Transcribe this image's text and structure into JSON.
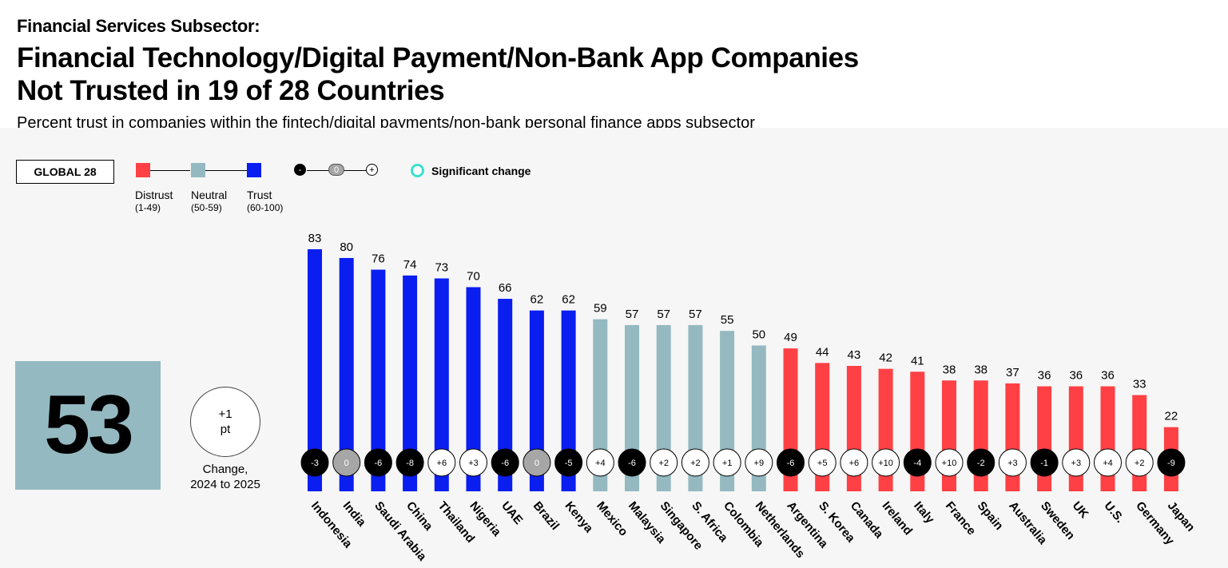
{
  "header": {
    "kicker": "Financial Services Subsector:",
    "title_line1": "Financial Technology/Digital Payment/Non-Bank App Companies",
    "title_line2": "Not Trusted in 19 of 28 Countries",
    "subtitle": "Percent trust in companies within the fintech/digital payments/non-bank personal finance apps subsector"
  },
  "legend": {
    "global_label": "GLOBAL 28",
    "distrust": "Distrust",
    "distrust_range": "(1-49)",
    "neutral": "Neutral",
    "neutral_range": "(50-59)",
    "trust": "Trust",
    "trust_range": "(60-100)",
    "minus": "-",
    "zero": "0",
    "plus": "+",
    "significant_change": "Significant change"
  },
  "global": {
    "value": "53",
    "change_value": "+1",
    "change_unit": "pt",
    "change_caption_line1": "Change,",
    "change_caption_line2": "2024 to 2025"
  },
  "colors": {
    "trust": "#0a1ef0",
    "neutral": "#94b9c1",
    "distrust": "#ff4044",
    "negative_change": "#000000",
    "zero_change": "#a6a6a6",
    "positive_change": "#ffffff",
    "significant_ring": "#3ce0d0"
  },
  "chart_data": {
    "type": "bar",
    "categories": [
      "Indonesia",
      "India",
      "Saudi Arabia",
      "China",
      "Thailand",
      "Nigeria",
      "UAE",
      "Brazil",
      "Kenya",
      "Mexico",
      "Malaysia",
      "Singapore",
      "S. Africa",
      "Colombia",
      "Netherlands",
      "Argentina",
      "S. Korea",
      "Canada",
      "Ireland",
      "Italy",
      "France",
      "Spain",
      "Australia",
      "Sweden",
      "UK",
      "U.S.",
      "Germany",
      "Japan"
    ],
    "values": [
      83,
      80,
      76,
      74,
      73,
      70,
      66,
      62,
      62,
      59,
      57,
      57,
      57,
      55,
      50,
      49,
      44,
      43,
      42,
      41,
      38,
      38,
      37,
      36,
      36,
      36,
      33,
      22
    ],
    "changes": [
      "-3",
      "0",
      "-6",
      "-8",
      "+6",
      "+3",
      "-6",
      "0",
      "-5",
      "+4",
      "-6",
      "+2",
      "+2",
      "+1",
      "+9",
      "-6",
      "+5",
      "+6",
      "+10",
      "-4",
      "+10",
      "-2",
      "+3",
      "-1",
      "+3",
      "+4",
      "+2",
      "-9"
    ],
    "ylim": [
      0,
      100
    ]
  }
}
